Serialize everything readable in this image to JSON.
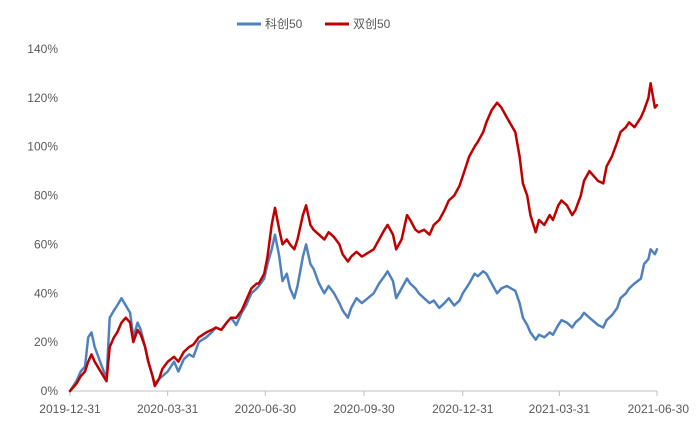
{
  "chart_data": {
    "type": "line",
    "title": "",
    "xlabel": "",
    "ylabel": "",
    "ylim": [
      0,
      140
    ],
    "y_unit": "%",
    "y_ticks": [
      0,
      20,
      40,
      60,
      80,
      100,
      120,
      140
    ],
    "y_tick_labels": [
      "0%",
      "20%",
      "40%",
      "60%",
      "80%",
      "100%",
      "120%",
      "140%"
    ],
    "x_range": [
      "2019-12-31",
      "2021-06-30"
    ],
    "x_ticks": [
      "2019-12-31",
      "2020-03-31",
      "2020-06-30",
      "2020-09-30",
      "2020-12-31",
      "2021-03-31",
      "2021-06-30"
    ],
    "grid": false,
    "legend_position": "top",
    "series": [
      {
        "name": "科创50",
        "color": "#4f81bd",
        "points": [
          [
            "2019-12-31",
            0
          ],
          [
            "2020-01-06",
            4
          ],
          [
            "2020-01-10",
            8
          ],
          [
            "2020-01-14",
            10
          ],
          [
            "2020-01-17",
            22
          ],
          [
            "2020-01-20",
            24
          ],
          [
            "2020-01-23",
            18
          ],
          [
            "2020-02-03",
            5
          ],
          [
            "2020-02-06",
            30
          ],
          [
            "2020-02-10",
            33
          ],
          [
            "2020-02-13",
            35
          ],
          [
            "2020-02-17",
            38
          ],
          [
            "2020-02-21",
            35
          ],
          [
            "2020-02-25",
            32
          ],
          [
            "2020-02-28",
            22
          ],
          [
            "2020-03-03",
            28
          ],
          [
            "2020-03-06",
            25
          ],
          [
            "2020-03-10",
            18
          ],
          [
            "2020-03-13",
            12
          ],
          [
            "2020-03-17",
            6
          ],
          [
            "2020-03-19",
            3
          ],
          [
            "2020-03-23",
            5
          ],
          [
            "2020-03-26",
            6
          ],
          [
            "2020-03-31",
            8
          ],
          [
            "2020-04-06",
            12
          ],
          [
            "2020-04-10",
            8
          ],
          [
            "2020-04-15",
            13
          ],
          [
            "2020-04-20",
            15
          ],
          [
            "2020-04-24",
            14
          ],
          [
            "2020-04-29",
            20
          ],
          [
            "2020-05-06",
            22
          ],
          [
            "2020-05-11",
            24
          ],
          [
            "2020-05-15",
            26
          ],
          [
            "2020-05-20",
            25
          ],
          [
            "2020-05-25",
            28
          ],
          [
            "2020-05-29",
            30
          ],
          [
            "2020-06-03",
            27
          ],
          [
            "2020-06-08",
            32
          ],
          [
            "2020-06-12",
            35
          ],
          [
            "2020-06-17",
            40
          ],
          [
            "2020-06-22",
            42
          ],
          [
            "2020-06-24",
            43
          ],
          [
            "2020-06-29",
            46
          ],
          [
            "2020-07-02",
            52
          ],
          [
            "2020-07-06",
            58
          ],
          [
            "2020-07-09",
            64
          ],
          [
            "2020-07-13",
            55
          ],
          [
            "2020-07-16",
            45
          ],
          [
            "2020-07-20",
            48
          ],
          [
            "2020-07-23",
            42
          ],
          [
            "2020-07-27",
            38
          ],
          [
            "2020-07-30",
            43
          ],
          [
            "2020-08-04",
            55
          ],
          [
            "2020-08-07",
            60
          ],
          [
            "2020-08-11",
            52
          ],
          [
            "2020-08-14",
            50
          ],
          [
            "2020-08-19",
            44
          ],
          [
            "2020-08-24",
            40
          ],
          [
            "2020-08-28",
            43
          ],
          [
            "2020-09-02",
            40
          ],
          [
            "2020-09-07",
            36
          ],
          [
            "2020-09-10",
            33
          ],
          [
            "2020-09-15",
            30
          ],
          [
            "2020-09-18",
            34
          ],
          [
            "2020-09-23",
            38
          ],
          [
            "2020-09-28",
            36
          ],
          [
            "2020-10-09",
            40
          ],
          [
            "2020-10-14",
            44
          ],
          [
            "2020-10-19",
            47
          ],
          [
            "2020-10-22",
            49
          ],
          [
            "2020-10-27",
            45
          ],
          [
            "2020-10-30",
            38
          ],
          [
            "2020-11-04",
            42
          ],
          [
            "2020-11-09",
            46
          ],
          [
            "2020-11-12",
            44
          ],
          [
            "2020-11-17",
            42
          ],
          [
            "2020-11-20",
            40
          ],
          [
            "2020-11-25",
            38
          ],
          [
            "2020-11-30",
            36
          ],
          [
            "2020-12-04",
            37
          ],
          [
            "2020-12-09",
            34
          ],
          [
            "2020-12-14",
            36
          ],
          [
            "2020-12-18",
            38
          ],
          [
            "2020-12-23",
            35
          ],
          [
            "2020-12-28",
            37
          ],
          [
            "2020-12-31",
            40
          ],
          [
            "2021-01-06",
            44
          ],
          [
            "2021-01-11",
            48
          ],
          [
            "2021-01-14",
            47
          ],
          [
            "2021-01-19",
            49
          ],
          [
            "2021-01-22",
            48
          ],
          [
            "2021-01-27",
            44
          ],
          [
            "2021-02-01",
            40
          ],
          [
            "2021-02-05",
            42
          ],
          [
            "2021-02-10",
            43
          ],
          [
            "2021-02-18",
            41
          ],
          [
            "2021-02-22",
            36
          ],
          [
            "2021-02-25",
            30
          ],
          [
            "2021-03-01",
            27
          ],
          [
            "2021-03-04",
            24
          ],
          [
            "2021-03-09",
            21
          ],
          [
            "2021-03-12",
            23
          ],
          [
            "2021-03-17",
            22
          ],
          [
            "2021-03-22",
            24
          ],
          [
            "2021-03-25",
            23
          ],
          [
            "2021-03-30",
            27
          ],
          [
            "2021-04-02",
            29
          ],
          [
            "2021-04-07",
            28
          ],
          [
            "2021-04-12",
            26
          ],
          [
            "2021-04-15",
            28
          ],
          [
            "2021-04-20",
            30
          ],
          [
            "2021-04-23",
            32
          ],
          [
            "2021-04-28",
            30
          ],
          [
            "2021-05-06",
            27
          ],
          [
            "2021-05-11",
            26
          ],
          [
            "2021-05-14",
            29
          ],
          [
            "2021-05-19",
            31
          ],
          [
            "2021-05-24",
            34
          ],
          [
            "2021-05-27",
            38
          ],
          [
            "2021-06-01",
            40
          ],
          [
            "2021-06-04",
            42
          ],
          [
            "2021-06-09",
            44
          ],
          [
            "2021-06-15",
            46
          ],
          [
            "2021-06-18",
            52
          ],
          [
            "2021-06-22",
            54
          ],
          [
            "2021-06-24",
            58
          ],
          [
            "2021-06-28",
            56
          ],
          [
            "2021-06-30",
            58
          ]
        ]
      },
      {
        "name": "双创50",
        "color": "#c00000",
        "points": [
          [
            "2019-12-31",
            0
          ],
          [
            "2020-01-06",
            3
          ],
          [
            "2020-01-10",
            6
          ],
          [
            "2020-01-14",
            8
          ],
          [
            "2020-01-17",
            12
          ],
          [
            "2020-01-20",
            15
          ],
          [
            "2020-01-23",
            12
          ],
          [
            "2020-02-03",
            4
          ],
          [
            "2020-02-06",
            18
          ],
          [
            "2020-02-10",
            22
          ],
          [
            "2020-02-13",
            24
          ],
          [
            "2020-02-17",
            28
          ],
          [
            "2020-02-21",
            30
          ],
          [
            "2020-02-25",
            28
          ],
          [
            "2020-02-28",
            20
          ],
          [
            "2020-03-03",
            25
          ],
          [
            "2020-03-06",
            23
          ],
          [
            "2020-03-10",
            18
          ],
          [
            "2020-03-13",
            12
          ],
          [
            "2020-03-17",
            6
          ],
          [
            "2020-03-19",
            2
          ],
          [
            "2020-03-23",
            5
          ],
          [
            "2020-03-26",
            9
          ],
          [
            "2020-03-31",
            12
          ],
          [
            "2020-04-06",
            14
          ],
          [
            "2020-04-10",
            12
          ],
          [
            "2020-04-15",
            16
          ],
          [
            "2020-04-20",
            18
          ],
          [
            "2020-04-24",
            19
          ],
          [
            "2020-04-29",
            22
          ],
          [
            "2020-05-06",
            24
          ],
          [
            "2020-05-11",
            25
          ],
          [
            "2020-05-15",
            26
          ],
          [
            "2020-05-20",
            25
          ],
          [
            "2020-05-25",
            28
          ],
          [
            "2020-05-29",
            30
          ],
          [
            "2020-06-03",
            30
          ],
          [
            "2020-06-08",
            33
          ],
          [
            "2020-06-12",
            37
          ],
          [
            "2020-06-17",
            42
          ],
          [
            "2020-06-22",
            44
          ],
          [
            "2020-06-24",
            44
          ],
          [
            "2020-06-29",
            48
          ],
          [
            "2020-07-02",
            55
          ],
          [
            "2020-07-06",
            68
          ],
          [
            "2020-07-09",
            75
          ],
          [
            "2020-07-13",
            66
          ],
          [
            "2020-07-16",
            60
          ],
          [
            "2020-07-20",
            62
          ],
          [
            "2020-07-23",
            60
          ],
          [
            "2020-07-27",
            58
          ],
          [
            "2020-07-30",
            62
          ],
          [
            "2020-08-04",
            72
          ],
          [
            "2020-08-07",
            76
          ],
          [
            "2020-08-11",
            68
          ],
          [
            "2020-08-14",
            66
          ],
          [
            "2020-08-19",
            64
          ],
          [
            "2020-08-24",
            62
          ],
          [
            "2020-08-28",
            65
          ],
          [
            "2020-09-02",
            63
          ],
          [
            "2020-09-07",
            60
          ],
          [
            "2020-09-10",
            56
          ],
          [
            "2020-09-15",
            53
          ],
          [
            "2020-09-18",
            55
          ],
          [
            "2020-09-23",
            57
          ],
          [
            "2020-09-28",
            55
          ],
          [
            "2020-10-09",
            58
          ],
          [
            "2020-10-14",
            62
          ],
          [
            "2020-10-19",
            66
          ],
          [
            "2020-10-22",
            68
          ],
          [
            "2020-10-27",
            64
          ],
          [
            "2020-10-30",
            58
          ],
          [
            "2020-11-04",
            62
          ],
          [
            "2020-11-09",
            72
          ],
          [
            "2020-11-12",
            70
          ],
          [
            "2020-11-17",
            66
          ],
          [
            "2020-11-20",
            65
          ],
          [
            "2020-11-25",
            66
          ],
          [
            "2020-11-30",
            64
          ],
          [
            "2020-12-04",
            68
          ],
          [
            "2020-12-09",
            70
          ],
          [
            "2020-12-14",
            74
          ],
          [
            "2020-12-18",
            78
          ],
          [
            "2020-12-23",
            80
          ],
          [
            "2020-12-28",
            84
          ],
          [
            "2020-12-31",
            88
          ],
          [
            "2021-01-06",
            96
          ],
          [
            "2021-01-11",
            100
          ],
          [
            "2021-01-14",
            102
          ],
          [
            "2021-01-19",
            106
          ],
          [
            "2021-01-22",
            110
          ],
          [
            "2021-01-27",
            115
          ],
          [
            "2021-02-01",
            118
          ],
          [
            "2021-02-05",
            116
          ],
          [
            "2021-02-10",
            112
          ],
          [
            "2021-02-18",
            106
          ],
          [
            "2021-02-22",
            96
          ],
          [
            "2021-02-25",
            85
          ],
          [
            "2021-03-01",
            80
          ],
          [
            "2021-03-04",
            72
          ],
          [
            "2021-03-09",
            65
          ],
          [
            "2021-03-12",
            70
          ],
          [
            "2021-03-17",
            68
          ],
          [
            "2021-03-22",
            72
          ],
          [
            "2021-03-25",
            70
          ],
          [
            "2021-03-30",
            76
          ],
          [
            "2021-04-02",
            78
          ],
          [
            "2021-04-07",
            76
          ],
          [
            "2021-04-12",
            72
          ],
          [
            "2021-04-15",
            74
          ],
          [
            "2021-04-20",
            80
          ],
          [
            "2021-04-23",
            86
          ],
          [
            "2021-04-28",
            90
          ],
          [
            "2021-05-06",
            86
          ],
          [
            "2021-05-11",
            85
          ],
          [
            "2021-05-14",
            92
          ],
          [
            "2021-05-19",
            96
          ],
          [
            "2021-05-24",
            102
          ],
          [
            "2021-05-27",
            106
          ],
          [
            "2021-06-01",
            108
          ],
          [
            "2021-06-04",
            110
          ],
          [
            "2021-06-09",
            108
          ],
          [
            "2021-06-15",
            112
          ],
          [
            "2021-06-18",
            115
          ],
          [
            "2021-06-22",
            120
          ],
          [
            "2021-06-24",
            126
          ],
          [
            "2021-06-28",
            116
          ],
          [
            "2021-06-30",
            117
          ]
        ]
      }
    ]
  }
}
